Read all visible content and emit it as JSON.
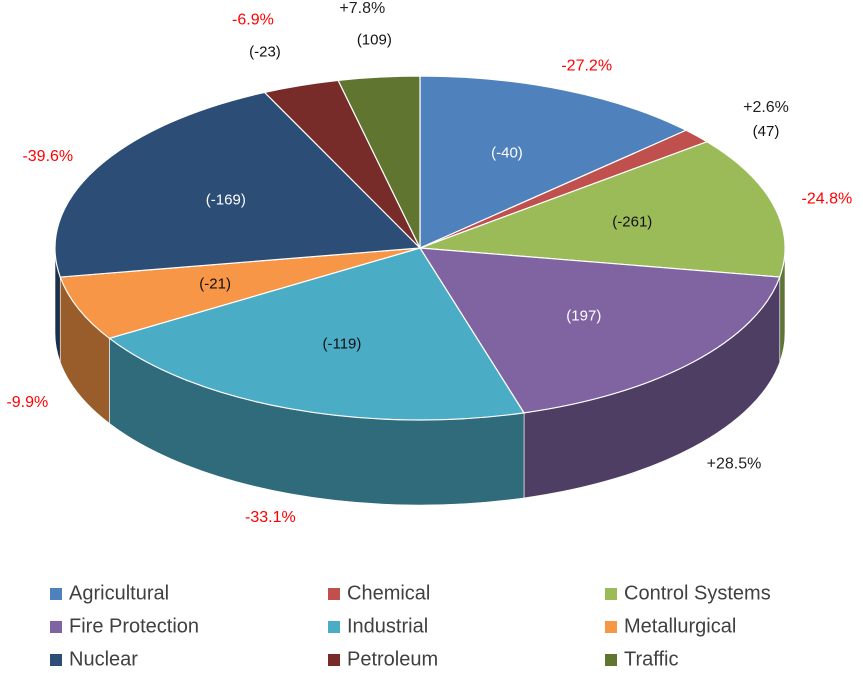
{
  "chart_data": {
    "type": "pie",
    "categories": [
      "Agricultural",
      "Chemical",
      "Control Systems",
      "Fire Protection",
      "Industrial",
      "Metallurgical",
      "Nuclear",
      "Petroleum",
      "Traffic"
    ],
    "values": [
      13.0,
      1.4,
      13.3,
      17.7,
      20.8,
      6.1,
      20.7,
      3.4,
      3.6
    ],
    "colors": [
      "#4f81bd",
      "#c0504d",
      "#9bbb59",
      "#8064a2",
      "#4bacc6",
      "#f79646",
      "#2c4d75",
      "#772c2a",
      "#5f7530"
    ],
    "change": [
      {
        "value": -40,
        "label": "(-40)"
      },
      {
        "value": 47,
        "label": "(47)"
      },
      {
        "value": -261,
        "label": "(-261)"
      },
      {
        "value": 197,
        "label": "(197)"
      },
      {
        "value": -119,
        "label": "(-119)"
      },
      {
        "value": -21,
        "label": "(-21)"
      },
      {
        "value": -169,
        "label": "(-169)"
      },
      {
        "value": -23,
        "label": "(-23)"
      },
      {
        "value": 109,
        "label": "(109)"
      }
    ],
    "change_pct": [
      {
        "value": -27.2,
        "label": "-27.2%"
      },
      {
        "value": 2.6,
        "label": "+2.6%"
      },
      {
        "value": -24.8,
        "label": "-24.8%"
      },
      {
        "value": 28.5,
        "label": "+28.5%"
      },
      {
        "value": -33.1,
        "label": "-33.1%"
      },
      {
        "value": -9.9,
        "label": "-9.9%"
      },
      {
        "value": -39.6,
        "label": "-39.6%"
      },
      {
        "value": -6.9,
        "label": "-6.9%"
      },
      {
        "value": 7.8,
        "label": "+7.8%"
      }
    ],
    "legend": "bottom"
  }
}
